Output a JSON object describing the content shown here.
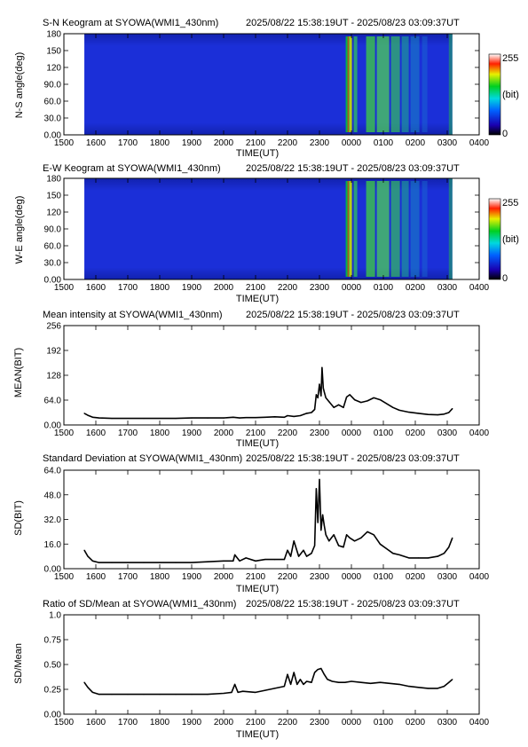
{
  "figure": {
    "timerange": "2025/08/22 15:38:19UT - 2025/08/23 03:09:37UT",
    "x_ticks": [
      "1500",
      "1600",
      "1700",
      "1800",
      "1900",
      "2000",
      "2100",
      "2200",
      "2300",
      "0000",
      "0100",
      "0200",
      "0300",
      "0400"
    ],
    "x_label": "TIME(UT)",
    "xlim_hours": [
      15,
      28
    ],
    "data_hours": [
      15.64,
      27.16
    ]
  },
  "keograms": [
    {
      "title": "S-N Keogram at SYOWA(WMI1_430nm)",
      "ylabel": "N-S angle(deg)",
      "y_ticks": [
        "0.00",
        "30.0",
        "60.0",
        "90.0",
        "120",
        "150",
        "180"
      ],
      "ylim": [
        0,
        180
      ],
      "colorbar": {
        "max": "255",
        "unit": "(bit)",
        "min": "0"
      },
      "aurora_onset_hours": 23.85
    },
    {
      "title": "E-W Keogram at SYOWA(WMI1_430nm)",
      "ylabel": "W-E angle(deg)",
      "y_ticks": [
        "0.00",
        "30.0",
        "60.0",
        "90.0",
        "120",
        "150",
        "180"
      ],
      "ylim": [
        0,
        180
      ],
      "colorbar": {
        "max": "255",
        "unit": "(bit)",
        "min": "0"
      },
      "aurora_onset_hours": 23.85
    }
  ],
  "chart_data": [
    {
      "type": "line",
      "title": "Mean intensity at SYOWA(WMI1_430nm)",
      "xlabel": "TIME(UT)",
      "ylabel": "MEAN(BIT)",
      "y_ticks": [
        "0.00",
        "64.0",
        "128",
        "192",
        "256"
      ],
      "ylim": [
        0,
        256
      ],
      "x_hours": [
        15.64,
        15.75,
        15.9,
        16.1,
        16.5,
        17.0,
        17.5,
        18.0,
        18.5,
        19.0,
        19.5,
        20.0,
        20.3,
        20.5,
        20.7,
        21.0,
        21.3,
        21.6,
        21.9,
        22.0,
        22.2,
        22.4,
        22.6,
        22.75,
        22.85,
        22.9,
        22.95,
        23.0,
        23.05,
        23.08,
        23.12,
        23.15,
        23.2,
        23.3,
        23.45,
        23.6,
        23.75,
        23.85,
        23.95,
        24.1,
        24.3,
        24.5,
        24.7,
        24.9,
        25.1,
        25.3,
        25.5,
        25.8,
        26.1,
        26.4,
        26.7,
        26.9,
        27.05,
        27.16
      ],
      "values": [
        30,
        25,
        20,
        18,
        17,
        17,
        17,
        17,
        17,
        18,
        18,
        18,
        20,
        18,
        19,
        19,
        20,
        21,
        20,
        24,
        22,
        24,
        30,
        32,
        40,
        78,
        70,
        105,
        75,
        148,
        95,
        85,
        70,
        60,
        45,
        52,
        45,
        72,
        78,
        65,
        58,
        62,
        70,
        65,
        55,
        45,
        38,
        33,
        30,
        27,
        26,
        28,
        32,
        42
      ]
    },
    {
      "type": "line",
      "title": "Standard Deviation at SYOWA(WMI1_430nm)",
      "xlabel": "TIME(UT)",
      "ylabel": "SD(BIT)",
      "y_ticks": [
        "0.00",
        "16.0",
        "32.0",
        "48.0",
        "64.0"
      ],
      "ylim": [
        0,
        64
      ],
      "x_hours": [
        15.64,
        15.75,
        15.9,
        16.1,
        16.5,
        17.0,
        17.5,
        18.0,
        18.5,
        19.0,
        19.5,
        20.0,
        20.3,
        20.35,
        20.5,
        20.7,
        21.0,
        21.3,
        21.6,
        21.9,
        22.0,
        22.1,
        22.2,
        22.35,
        22.5,
        22.6,
        22.75,
        22.85,
        22.9,
        22.95,
        23.0,
        23.05,
        23.1,
        23.15,
        23.2,
        23.3,
        23.45,
        23.6,
        23.75,
        23.85,
        23.95,
        24.1,
        24.3,
        24.5,
        24.7,
        24.9,
        25.1,
        25.3,
        25.5,
        25.8,
        26.1,
        26.4,
        26.7,
        26.9,
        27.05,
        27.16
      ],
      "values": [
        12,
        8,
        5,
        4,
        4,
        4,
        4,
        4,
        4,
        4,
        4.5,
        5,
        5,
        9,
        5,
        7,
        5,
        6,
        6,
        6,
        12,
        8,
        18,
        8,
        12,
        8,
        10,
        15,
        52,
        30,
        58,
        25,
        35,
        28,
        22,
        18,
        22,
        15,
        14,
        22,
        20,
        18,
        20,
        24,
        22,
        16,
        13,
        10,
        9,
        7,
        7,
        7,
        8,
        10,
        14,
        20
      ]
    },
    {
      "type": "line",
      "title": "Ratio of SD/Mean at SYOWA(WMI1_430nm)",
      "xlabel": "TIME(UT)",
      "ylabel": "SD/Mean",
      "y_ticks": [
        "0.00",
        "0.25",
        "0.50",
        "0.75",
        "1.0"
      ],
      "ylim": [
        0,
        1
      ],
      "x_hours": [
        15.64,
        15.75,
        15.9,
        16.1,
        16.5,
        17.0,
        17.5,
        18.0,
        18.5,
        19.0,
        19.5,
        20.0,
        20.25,
        20.35,
        20.45,
        20.6,
        21.0,
        21.3,
        21.6,
        21.9,
        22.0,
        22.1,
        22.2,
        22.3,
        22.4,
        22.5,
        22.6,
        22.75,
        22.85,
        22.95,
        23.05,
        23.15,
        23.25,
        23.4,
        23.6,
        23.8,
        24.0,
        24.3,
        24.6,
        24.9,
        25.2,
        25.5,
        25.8,
        26.1,
        26.4,
        26.7,
        26.9,
        27.05,
        27.16
      ],
      "values": [
        0.32,
        0.27,
        0.22,
        0.2,
        0.2,
        0.2,
        0.2,
        0.2,
        0.2,
        0.2,
        0.2,
        0.21,
        0.22,
        0.3,
        0.22,
        0.23,
        0.22,
        0.24,
        0.26,
        0.28,
        0.4,
        0.3,
        0.42,
        0.3,
        0.35,
        0.3,
        0.33,
        0.32,
        0.42,
        0.45,
        0.46,
        0.4,
        0.35,
        0.33,
        0.32,
        0.32,
        0.33,
        0.32,
        0.31,
        0.32,
        0.31,
        0.3,
        0.28,
        0.27,
        0.26,
        0.26,
        0.28,
        0.32,
        0.35
      ]
    }
  ],
  "colors": {
    "background": "#ffffff",
    "axis": "#000000",
    "keogram_base": "#1b2fd8",
    "keogram_gap": "#ffffff"
  }
}
